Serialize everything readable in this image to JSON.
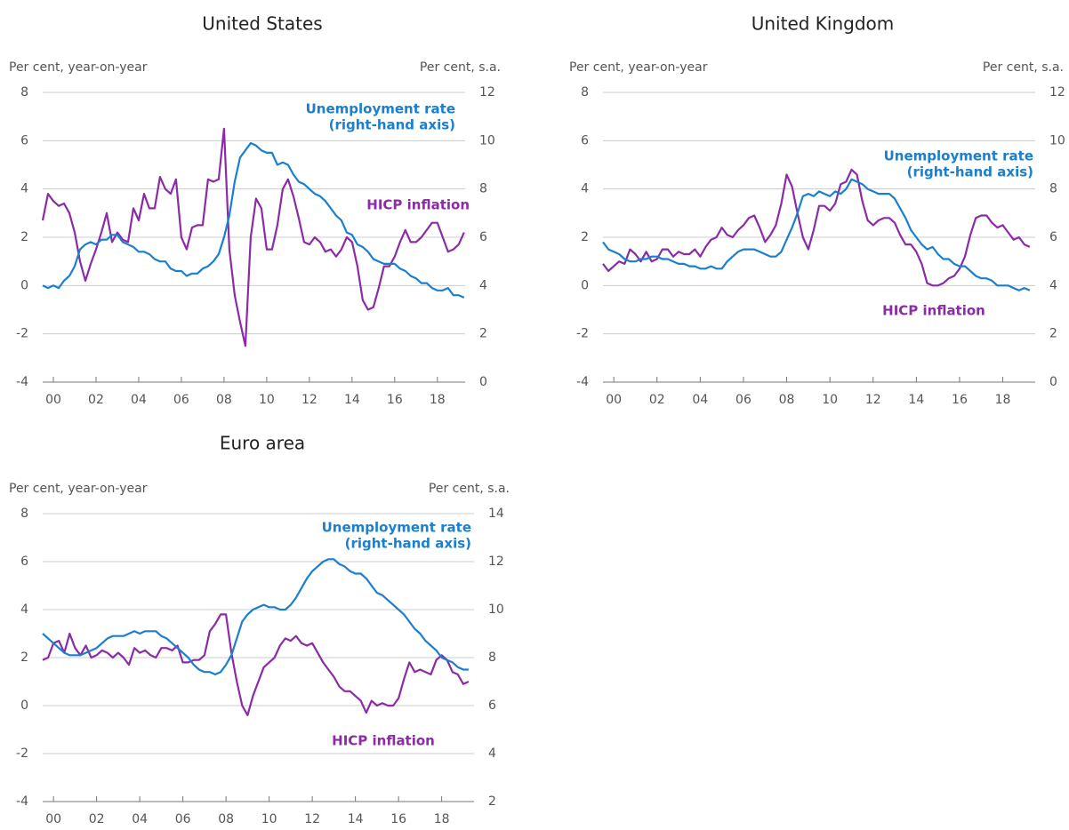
{
  "chart_data": [
    {
      "type": "line",
      "title": "United States",
      "y_label": "Per cent, year-on-year",
      "y2_label": "Per cent, s.a.",
      "x": [
        2000,
        2000.25,
        2000.5,
        2000.75,
        2001,
        2001.25,
        2001.5,
        2001.75,
        2002,
        2002.25,
        2002.5,
        2002.75,
        2003,
        2003.25,
        2003.5,
        2003.75,
        2004,
        2004.25,
        2004.5,
        2004.75,
        2005,
        2005.25,
        2005.5,
        2005.75,
        2006,
        2006.25,
        2006.5,
        2006.75,
        2007,
        2007.25,
        2007.5,
        2007.75,
        2008,
        2008.25,
        2008.5,
        2008.75,
        2009,
        2009.25,
        2009.5,
        2009.75,
        2010,
        2010.25,
        2010.5,
        2010.75,
        2011,
        2011.25,
        2011.5,
        2011.75,
        2012,
        2012.25,
        2012.5,
        2012.75,
        2013,
        2013.25,
        2013.5,
        2013.75,
        2014,
        2014.25,
        2014.5,
        2014.75,
        2015,
        2015.25,
        2015.5,
        2015.75,
        2016,
        2016.25,
        2016.5,
        2016.75,
        2017,
        2017.25,
        2017.5,
        2017.75,
        2018,
        2018.25,
        2018.5,
        2018.75,
        2019,
        2019.25,
        2019.5,
        2019.75
      ],
      "xlim": [
        2000,
        2019.8
      ],
      "xticks": [
        {
          "value": 2000.5,
          "label": "00"
        },
        {
          "value": 2002.5,
          "label": "02"
        },
        {
          "value": 2004.5,
          "label": "04"
        },
        {
          "value": 2006.5,
          "label": "06"
        },
        {
          "value": 2008.5,
          "label": "08"
        },
        {
          "value": 2010.5,
          "label": "10"
        },
        {
          "value": 2012.5,
          "label": "12"
        },
        {
          "value": 2014.5,
          "label": "14"
        },
        {
          "value": 2016.5,
          "label": "16"
        },
        {
          "value": 2018.5,
          "label": "18"
        }
      ],
      "ylim": [
        -4,
        8
      ],
      "yticks": [
        -4,
        -2,
        0,
        2,
        4,
        6,
        8
      ],
      "y2lim": [
        0,
        12
      ],
      "y2ticks": [
        0,
        2,
        4,
        6,
        8,
        10,
        12
      ],
      "grid": true,
      "series": [
        {
          "name": "HICP inflation",
          "color": "#8b2ba6",
          "axis": "y",
          "values": [
            2.7,
            3.8,
            3.5,
            3.3,
            3.4,
            3.0,
            2.2,
            1.0,
            0.2,
            0.9,
            1.5,
            2.2,
            3.0,
            1.8,
            2.2,
            1.9,
            1.8,
            3.2,
            2.7,
            3.8,
            3.2,
            3.2,
            4.5,
            4.0,
            3.8,
            4.4,
            2.0,
            1.5,
            2.4,
            2.5,
            2.5,
            4.4,
            4.3,
            4.4,
            6.5,
            1.5,
            -0.4,
            -1.5,
            -2.5,
            2.0,
            3.6,
            3.2,
            1.5,
            1.5,
            2.5,
            4.0,
            4.4,
            3.7,
            2.8,
            1.8,
            1.7,
            2.0,
            1.8,
            1.4,
            1.5,
            1.2,
            1.5,
            2.0,
            1.8,
            0.8,
            -0.6,
            -1.0,
            -0.9,
            -0.1,
            0.8,
            0.8,
            1.2,
            1.8,
            2.3,
            1.8,
            1.8,
            2.0,
            2.3,
            2.6,
            2.6,
            2.0,
            1.4,
            1.5,
            1.7,
            2.2
          ]
        },
        {
          "name": "Unemployment rate",
          "color": "#1a7fcf",
          "axis": "y2",
          "values": [
            4.0,
            3.9,
            4.0,
            3.9,
            4.2,
            4.4,
            4.8,
            5.5,
            5.7,
            5.8,
            5.7,
            5.9,
            5.9,
            6.1,
            6.1,
            5.8,
            5.7,
            5.6,
            5.4,
            5.4,
            5.3,
            5.1,
            5.0,
            5.0,
            4.7,
            4.6,
            4.6,
            4.4,
            4.5,
            4.5,
            4.7,
            4.8,
            5.0,
            5.3,
            6.0,
            6.9,
            8.3,
            9.3,
            9.6,
            9.9,
            9.8,
            9.6,
            9.5,
            9.5,
            9.0,
            9.1,
            9.0,
            8.6,
            8.3,
            8.2,
            8.0,
            7.8,
            7.7,
            7.5,
            7.2,
            6.9,
            6.7,
            6.2,
            6.1,
            5.7,
            5.6,
            5.4,
            5.1,
            5.0,
            4.9,
            4.9,
            4.9,
            4.7,
            4.6,
            4.4,
            4.3,
            4.1,
            4.1,
            3.9,
            3.8,
            3.8,
            3.9,
            3.6,
            3.6,
            3.5
          ]
        }
      ],
      "annotations": [
        "Unemployment rate",
        "(right-hand axis)",
        "HICP inflation"
      ]
    },
    {
      "type": "line",
      "title": "United Kingdom",
      "y_label": "Per cent, year-on-year",
      "y2_label": "Per cent, s.a.",
      "x": [
        2000,
        2000.25,
        2000.5,
        2000.75,
        2001,
        2001.25,
        2001.5,
        2001.75,
        2002,
        2002.25,
        2002.5,
        2002.75,
        2003,
        2003.25,
        2003.5,
        2003.75,
        2004,
        2004.25,
        2004.5,
        2004.75,
        2005,
        2005.25,
        2005.5,
        2005.75,
        2006,
        2006.25,
        2006.5,
        2006.75,
        2007,
        2007.25,
        2007.5,
        2007.75,
        2008,
        2008.25,
        2008.5,
        2008.75,
        2009,
        2009.25,
        2009.5,
        2009.75,
        2010,
        2010.25,
        2010.5,
        2010.75,
        2011,
        2011.25,
        2011.5,
        2011.75,
        2012,
        2012.25,
        2012.5,
        2012.75,
        2013,
        2013.25,
        2013.5,
        2013.75,
        2014,
        2014.25,
        2014.5,
        2014.75,
        2015,
        2015.25,
        2015.5,
        2015.75,
        2016,
        2016.25,
        2016.5,
        2016.75,
        2017,
        2017.25,
        2017.5,
        2017.75,
        2018,
        2018.25,
        2018.5,
        2018.75,
        2019,
        2019.25,
        2019.5,
        2019.75
      ],
      "xlim": [
        2000,
        2020
      ],
      "xticks": [
        {
          "value": 2000.5,
          "label": "00"
        },
        {
          "value": 2002.5,
          "label": "02"
        },
        {
          "value": 2004.5,
          "label": "04"
        },
        {
          "value": 2006.5,
          "label": "06"
        },
        {
          "value": 2008.5,
          "label": "08"
        },
        {
          "value": 2010.5,
          "label": "10"
        },
        {
          "value": 2012.5,
          "label": "12"
        },
        {
          "value": 2014.5,
          "label": "14"
        },
        {
          "value": 2016.5,
          "label": "16"
        },
        {
          "value": 2018.5,
          "label": "18"
        }
      ],
      "ylim": [
        -4,
        8
      ],
      "yticks": [
        -4,
        -2,
        0,
        2,
        4,
        6,
        8
      ],
      "y2lim": [
        0,
        12
      ],
      "y2ticks": [
        0,
        2,
        4,
        6,
        8,
        10,
        12
      ],
      "grid": true,
      "series": [
        {
          "name": "HICP inflation",
          "color": "#8b2ba6",
          "axis": "y",
          "values": [
            0.9,
            0.6,
            0.8,
            1.0,
            0.9,
            1.5,
            1.3,
            1.0,
            1.4,
            1.0,
            1.1,
            1.5,
            1.5,
            1.2,
            1.4,
            1.3,
            1.3,
            1.5,
            1.2,
            1.6,
            1.9,
            2.0,
            2.4,
            2.1,
            2.0,
            2.3,
            2.5,
            2.8,
            2.9,
            2.4,
            1.8,
            2.1,
            2.5,
            3.4,
            4.6,
            4.1,
            3.0,
            2.0,
            1.5,
            2.3,
            3.3,
            3.3,
            3.1,
            3.4,
            4.2,
            4.3,
            4.8,
            4.6,
            3.5,
            2.7,
            2.5,
            2.7,
            2.8,
            2.8,
            2.6,
            2.1,
            1.7,
            1.7,
            1.4,
            0.9,
            0.1,
            0.0,
            0.0,
            0.1,
            0.3,
            0.4,
            0.7,
            1.2,
            2.1,
            2.8,
            2.9,
            2.9,
            2.6,
            2.4,
            2.5,
            2.2,
            1.9,
            2.0,
            1.7,
            1.6
          ]
        },
        {
          "name": "Unemployment rate",
          "color": "#1a7fcf",
          "axis": "y2",
          "values": [
            5.8,
            5.5,
            5.4,
            5.3,
            5.1,
            5.0,
            5.0,
            5.1,
            5.1,
            5.2,
            5.2,
            5.1,
            5.1,
            5.0,
            4.9,
            4.9,
            4.8,
            4.8,
            4.7,
            4.7,
            4.8,
            4.7,
            4.7,
            5.0,
            5.2,
            5.4,
            5.5,
            5.5,
            5.5,
            5.4,
            5.3,
            5.2,
            5.2,
            5.4,
            5.9,
            6.4,
            7.0,
            7.7,
            7.8,
            7.7,
            7.9,
            7.8,
            7.7,
            7.9,
            7.8,
            8.0,
            8.4,
            8.3,
            8.2,
            8.0,
            7.9,
            7.8,
            7.8,
            7.8,
            7.6,
            7.2,
            6.8,
            6.3,
            6.0,
            5.7,
            5.5,
            5.6,
            5.3,
            5.1,
            5.1,
            4.9,
            4.8,
            4.8,
            4.6,
            4.4,
            4.3,
            4.3,
            4.2,
            4.0,
            4.0,
            4.0,
            3.9,
            3.8,
            3.9,
            3.8
          ]
        }
      ],
      "annotations": [
        "Unemployment rate",
        "(right-hand axis)",
        "HICP inflation"
      ]
    },
    {
      "type": "line",
      "title": "Euro area",
      "y_label": "Per cent, year-on-year",
      "y2_label": "Per cent, s.a.",
      "x": [
        2000,
        2000.25,
        2000.5,
        2000.75,
        2001,
        2001.25,
        2001.5,
        2001.75,
        2002,
        2002.25,
        2002.5,
        2002.75,
        2003,
        2003.25,
        2003.5,
        2003.75,
        2004,
        2004.25,
        2004.5,
        2004.75,
        2005,
        2005.25,
        2005.5,
        2005.75,
        2006,
        2006.25,
        2006.5,
        2006.75,
        2007,
        2007.25,
        2007.5,
        2007.75,
        2008,
        2008.25,
        2008.5,
        2008.75,
        2009,
        2009.25,
        2009.5,
        2009.75,
        2010,
        2010.25,
        2010.5,
        2010.75,
        2011,
        2011.25,
        2011.5,
        2011.75,
        2012,
        2012.25,
        2012.5,
        2012.75,
        2013,
        2013.25,
        2013.5,
        2013.75,
        2014,
        2014.25,
        2014.5,
        2014.75,
        2015,
        2015.25,
        2015.5,
        2015.75,
        2016,
        2016.25,
        2016.5,
        2016.75,
        2017,
        2017.25,
        2017.5,
        2017.75,
        2018,
        2018.25,
        2018.5,
        2018.75,
        2019,
        2019.25,
        2019.5,
        2019.75
      ],
      "xlim": [
        2000,
        2020
      ],
      "xticks": [
        {
          "value": 2000.5,
          "label": "00"
        },
        {
          "value": 2002.5,
          "label": "02"
        },
        {
          "value": 2004.5,
          "label": "04"
        },
        {
          "value": 2006.5,
          "label": "06"
        },
        {
          "value": 2008.5,
          "label": "08"
        },
        {
          "value": 2010.5,
          "label": "10"
        },
        {
          "value": 2012.5,
          "label": "12"
        },
        {
          "value": 2014.5,
          "label": "14"
        },
        {
          "value": 2016.5,
          "label": "16"
        },
        {
          "value": 2018.5,
          "label": "18"
        }
      ],
      "ylim": [
        -4,
        8
      ],
      "yticks": [
        -4,
        -2,
        0,
        2,
        4,
        6,
        8
      ],
      "y2lim": [
        2,
        14
      ],
      "y2ticks": [
        2,
        4,
        6,
        8,
        10,
        12,
        14
      ],
      "grid": true,
      "series": [
        {
          "name": "HICP inflation",
          "color": "#8b2ba6",
          "axis": "y",
          "values": [
            1.9,
            2.0,
            2.6,
            2.7,
            2.2,
            3.0,
            2.4,
            2.1,
            2.5,
            2.0,
            2.1,
            2.3,
            2.2,
            2.0,
            2.2,
            2.0,
            1.7,
            2.4,
            2.2,
            2.3,
            2.1,
            2.0,
            2.4,
            2.4,
            2.3,
            2.5,
            1.8,
            1.8,
            1.9,
            1.9,
            2.1,
            3.1,
            3.4,
            3.8,
            3.8,
            2.2,
            1.0,
            0.0,
            -0.4,
            0.4,
            1.0,
            1.6,
            1.8,
            2.0,
            2.5,
            2.8,
            2.7,
            2.9,
            2.6,
            2.5,
            2.6,
            2.2,
            1.8,
            1.5,
            1.2,
            0.8,
            0.6,
            0.6,
            0.4,
            0.2,
            -0.3,
            0.2,
            0.0,
            0.1,
            0.0,
            0.0,
            0.3,
            1.1,
            1.8,
            1.4,
            1.5,
            1.4,
            1.3,
            1.9,
            2.1,
            1.9,
            1.4,
            1.3,
            0.9,
            1.0
          ]
        },
        {
          "name": "Unemployment rate",
          "color": "#1a7fcf",
          "axis": "y2",
          "values": [
            9.0,
            8.8,
            8.6,
            8.4,
            8.2,
            8.1,
            8.1,
            8.1,
            8.2,
            8.3,
            8.4,
            8.6,
            8.8,
            8.9,
            8.9,
            8.9,
            9.0,
            9.1,
            9.0,
            9.1,
            9.1,
            9.1,
            8.9,
            8.8,
            8.6,
            8.4,
            8.2,
            8.0,
            7.7,
            7.5,
            7.4,
            7.4,
            7.3,
            7.4,
            7.7,
            8.1,
            8.8,
            9.5,
            9.8,
            10.0,
            10.1,
            10.2,
            10.1,
            10.1,
            10.0,
            10.0,
            10.2,
            10.5,
            10.9,
            11.3,
            11.6,
            11.8,
            12.0,
            12.1,
            12.1,
            11.9,
            11.8,
            11.6,
            11.5,
            11.5,
            11.3,
            11.0,
            10.7,
            10.6,
            10.4,
            10.2,
            10.0,
            9.8,
            9.5,
            9.2,
            9.0,
            8.7,
            8.5,
            8.3,
            8.0,
            7.9,
            7.8,
            7.6,
            7.5,
            7.5
          ]
        }
      ],
      "annotations": [
        "Unemployment rate",
        "(right-hand axis)",
        "HICP inflation"
      ]
    }
  ]
}
